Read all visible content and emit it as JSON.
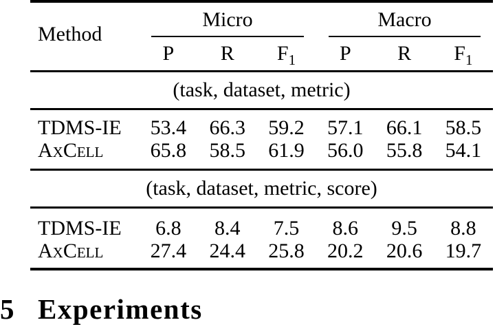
{
  "page": {
    "background": "#ffffff",
    "text_color": "#000000"
  },
  "table": {
    "method_header": "Method",
    "groups": [
      {
        "label": "Micro"
      },
      {
        "label": "Macro"
      }
    ],
    "metric_headers": [
      {
        "text": "P",
        "sub": ""
      },
      {
        "text": "R",
        "sub": ""
      },
      {
        "text": "F",
        "sub": "1"
      },
      {
        "text": "P",
        "sub": ""
      },
      {
        "text": "R",
        "sub": ""
      },
      {
        "text": "F",
        "sub": "1"
      }
    ],
    "sections": [
      {
        "title": "(task, dataset, metric)",
        "rows": [
          {
            "method": "TDMS-IE",
            "values": [
              "53.4",
              "66.3",
              "59.2",
              "57.1",
              "66.1",
              "58.5"
            ]
          },
          {
            "method": "AxCell",
            "values": [
              "65.8",
              "58.5",
              "61.9",
              "56.0",
              "55.8",
              "54.1"
            ]
          }
        ]
      },
      {
        "title": "(task, dataset, metric, score)",
        "rows": [
          {
            "method": "TDMS-IE",
            "values": [
              "6.8",
              "8.4",
              "7.5",
              "8.6",
              "9.5",
              "8.8"
            ]
          },
          {
            "method": "AxCell",
            "values": [
              "27.4",
              "24.4",
              "25.8",
              "20.2",
              "20.6",
              "19.7"
            ]
          }
        ]
      }
    ]
  },
  "heading": {
    "number": "5",
    "title": "Experiments"
  }
}
